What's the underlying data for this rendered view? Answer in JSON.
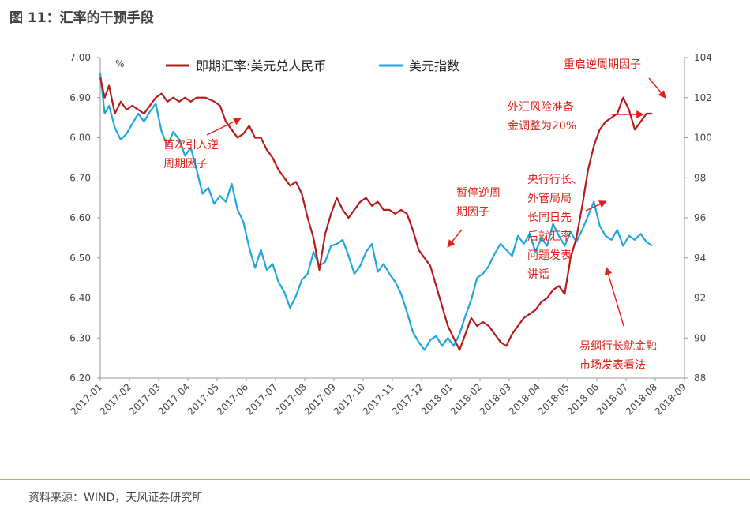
{
  "header": {
    "title": "图 11：汇率的干预手段"
  },
  "footer": {
    "source": "资料来源：WIND，天风证券研究所"
  },
  "colors": {
    "cny": "#b41c1c",
    "dxy": "#1fa7dc",
    "annotation": "#e0201a",
    "rule": "#c9a27a"
  },
  "chart_data": {
    "type": "line",
    "unit_label": "%",
    "x_ticks": [
      "2017-01",
      "2017-02",
      "2017-03",
      "2017-04",
      "2017-05",
      "2017-06",
      "2017-07",
      "2017-08",
      "2017-09",
      "2017-10",
      "2017-11",
      "2017-12",
      "2018-01",
      "2018-02",
      "2018-03",
      "2018-04",
      "2018-05",
      "2018-06",
      "2018-07",
      "2018-08",
      "2018-09"
    ],
    "y_left": {
      "min": 6.2,
      "max": 7.0,
      "ticks": [
        "7.00",
        "6.90",
        "6.80",
        "6.70",
        "6.60",
        "6.50",
        "6.40",
        "6.30",
        "6.20"
      ]
    },
    "y_right": {
      "min": 88,
      "max": 104,
      "ticks": [
        "104",
        "102",
        "100",
        "98",
        "96",
        "94",
        "92",
        "90",
        "88"
      ]
    },
    "series": [
      {
        "name": "即期汇率:美元兑人民币",
        "axis": "left",
        "points": [
          [
            0,
            6.95
          ],
          [
            0.15,
            6.9
          ],
          [
            0.3,
            6.93
          ],
          [
            0.5,
            6.86
          ],
          [
            0.7,
            6.89
          ],
          [
            0.9,
            6.87
          ],
          [
            1.1,
            6.88
          ],
          [
            1.3,
            6.87
          ],
          [
            1.5,
            6.86
          ],
          [
            1.7,
            6.88
          ],
          [
            1.9,
            6.9
          ],
          [
            2.1,
            6.91
          ],
          [
            2.3,
            6.89
          ],
          [
            2.5,
            6.9
          ],
          [
            2.7,
            6.89
          ],
          [
            2.9,
            6.9
          ],
          [
            3.1,
            6.89
          ],
          [
            3.3,
            6.9
          ],
          [
            3.6,
            6.9
          ],
          [
            3.9,
            6.89
          ],
          [
            4.1,
            6.88
          ],
          [
            4.3,
            6.84
          ],
          [
            4.5,
            6.82
          ],
          [
            4.7,
            6.8
          ],
          [
            4.9,
            6.81
          ],
          [
            5.1,
            6.83
          ],
          [
            5.3,
            6.8
          ],
          [
            5.5,
            6.8
          ],
          [
            5.7,
            6.77
          ],
          [
            5.9,
            6.75
          ],
          [
            6.1,
            6.72
          ],
          [
            6.3,
            6.7
          ],
          [
            6.5,
            6.68
          ],
          [
            6.7,
            6.69
          ],
          [
            6.9,
            6.66
          ],
          [
            7.1,
            6.6
          ],
          [
            7.3,
            6.55
          ],
          [
            7.5,
            6.47
          ],
          [
            7.7,
            6.56
          ],
          [
            7.9,
            6.61
          ],
          [
            8.1,
            6.65
          ],
          [
            8.3,
            6.62
          ],
          [
            8.5,
            6.6
          ],
          [
            8.7,
            6.62
          ],
          [
            8.9,
            6.64
          ],
          [
            9.1,
            6.65
          ],
          [
            9.3,
            6.63
          ],
          [
            9.5,
            6.64
          ],
          [
            9.7,
            6.62
          ],
          [
            9.9,
            6.62
          ],
          [
            10.1,
            6.61
          ],
          [
            10.3,
            6.62
          ],
          [
            10.5,
            6.61
          ],
          [
            10.7,
            6.57
          ],
          [
            10.9,
            6.52
          ],
          [
            11.1,
            6.5
          ],
          [
            11.3,
            6.48
          ],
          [
            11.5,
            6.43
          ],
          [
            11.7,
            6.38
          ],
          [
            11.9,
            6.33
          ],
          [
            12.1,
            6.3
          ],
          [
            12.3,
            6.27
          ],
          [
            12.5,
            6.31
          ],
          [
            12.7,
            6.35
          ],
          [
            12.9,
            6.33
          ],
          [
            13.1,
            6.34
          ],
          [
            13.3,
            6.33
          ],
          [
            13.5,
            6.31
          ],
          [
            13.7,
            6.29
          ],
          [
            13.9,
            6.28
          ],
          [
            14.1,
            6.31
          ],
          [
            14.3,
            6.33
          ],
          [
            14.5,
            6.35
          ],
          [
            14.7,
            6.36
          ],
          [
            14.9,
            6.37
          ],
          [
            15.1,
            6.39
          ],
          [
            15.3,
            6.4
          ],
          [
            15.5,
            6.42
          ],
          [
            15.7,
            6.43
          ],
          [
            15.9,
            6.41
          ],
          [
            16.1,
            6.5
          ],
          [
            16.3,
            6.55
          ],
          [
            16.5,
            6.63
          ],
          [
            16.7,
            6.72
          ],
          [
            16.9,
            6.78
          ],
          [
            17.1,
            6.82
          ],
          [
            17.3,
            6.84
          ],
          [
            17.5,
            6.85
          ],
          [
            17.7,
            6.86
          ],
          [
            17.9,
            6.9
          ],
          [
            18.1,
            6.87
          ],
          [
            18.3,
            6.82
          ],
          [
            18.5,
            6.84
          ],
          [
            18.7,
            6.86
          ],
          [
            18.9,
            6.86
          ]
        ]
      },
      {
        "name": "美元指数",
        "axis": "right",
        "points": [
          [
            0,
            103.2
          ],
          [
            0.15,
            101.2
          ],
          [
            0.3,
            101.6
          ],
          [
            0.5,
            100.5
          ],
          [
            0.7,
            99.9
          ],
          [
            0.9,
            100.2
          ],
          [
            1.1,
            100.7
          ],
          [
            1.3,
            101.2
          ],
          [
            1.5,
            100.8
          ],
          [
            1.7,
            101.3
          ],
          [
            1.9,
            101.7
          ],
          [
            2.1,
            100.3
          ],
          [
            2.3,
            99.6
          ],
          [
            2.5,
            100.3
          ],
          [
            2.7,
            99.9
          ],
          [
            2.9,
            99.1
          ],
          [
            3.1,
            99.5
          ],
          [
            3.3,
            98.4
          ],
          [
            3.5,
            97.2
          ],
          [
            3.7,
            97.5
          ],
          [
            3.9,
            96.7
          ],
          [
            4.1,
            97.1
          ],
          [
            4.3,
            96.8
          ],
          [
            4.5,
            97.7
          ],
          [
            4.7,
            96.4
          ],
          [
            4.9,
            95.8
          ],
          [
            5.1,
            94.5
          ],
          [
            5.3,
            93.5
          ],
          [
            5.5,
            94.4
          ],
          [
            5.7,
            93.4
          ],
          [
            5.9,
            93.7
          ],
          [
            6.1,
            92.8
          ],
          [
            6.3,
            92.3
          ],
          [
            6.5,
            91.5
          ],
          [
            6.7,
            92.1
          ],
          [
            6.9,
            92.9
          ],
          [
            7.1,
            93.2
          ],
          [
            7.3,
            94.3
          ],
          [
            7.5,
            93.6
          ],
          [
            7.7,
            93.8
          ],
          [
            7.9,
            94.6
          ],
          [
            8.1,
            94.7
          ],
          [
            8.3,
            94.9
          ],
          [
            8.5,
            94.1
          ],
          [
            8.7,
            93.2
          ],
          [
            8.9,
            93.6
          ],
          [
            9.1,
            94.3
          ],
          [
            9.3,
            94.7
          ],
          [
            9.5,
            93.3
          ],
          [
            9.7,
            93.7
          ],
          [
            9.9,
            93.2
          ],
          [
            10.1,
            92.8
          ],
          [
            10.3,
            92.2
          ],
          [
            10.5,
            91.3
          ],
          [
            10.7,
            90.3
          ],
          [
            10.9,
            89.8
          ],
          [
            11.1,
            89.4
          ],
          [
            11.3,
            89.9
          ],
          [
            11.5,
            90.1
          ],
          [
            11.7,
            89.6
          ],
          [
            11.9,
            90.0
          ],
          [
            12.1,
            89.6
          ],
          [
            12.3,
            90.2
          ],
          [
            12.5,
            91.1
          ],
          [
            12.7,
            91.9
          ],
          [
            12.9,
            93.0
          ],
          [
            13.1,
            93.2
          ],
          [
            13.3,
            93.6
          ],
          [
            13.5,
            94.2
          ],
          [
            13.7,
            94.7
          ],
          [
            13.9,
            94.4
          ],
          [
            14.1,
            94.1
          ],
          [
            14.3,
            95.1
          ],
          [
            14.5,
            94.7
          ],
          [
            14.7,
            95.2
          ],
          [
            14.9,
            94.3
          ],
          [
            15.1,
            95.0
          ],
          [
            15.3,
            94.6
          ],
          [
            15.5,
            95.7
          ],
          [
            15.7,
            95.1
          ],
          [
            15.9,
            94.6
          ],
          [
            16.1,
            95.3
          ],
          [
            16.3,
            94.8
          ],
          [
            16.5,
            95.4
          ],
          [
            16.7,
            96.1
          ],
          [
            16.9,
            96.8
          ],
          [
            17.1,
            95.6
          ],
          [
            17.3,
            95.1
          ],
          [
            17.5,
            94.9
          ],
          [
            17.7,
            95.4
          ],
          [
            17.9,
            94.6
          ],
          [
            18.1,
            95.1
          ],
          [
            18.3,
            94.9
          ],
          [
            18.5,
            95.2
          ],
          [
            18.7,
            94.8
          ],
          [
            18.9,
            94.6
          ]
        ]
      }
    ],
    "annotations": [
      {
        "lines": [
          "首次引入逆",
          "周期因子"
        ]
      },
      {
        "lines": [
          "暂停逆周",
          "期因子"
        ]
      },
      {
        "lines": [
          "央行行长、",
          "外管局局",
          "长同日先",
          "后就汇率",
          "问题发表",
          "讲话"
        ]
      },
      {
        "lines": [
          "易纲行长就金融",
          "市场发表看法"
        ]
      },
      {
        "lines": [
          "外汇风险准备",
          "金调整为20%"
        ]
      },
      {
        "lines": [
          "重启逆周期因子"
        ]
      }
    ]
  }
}
